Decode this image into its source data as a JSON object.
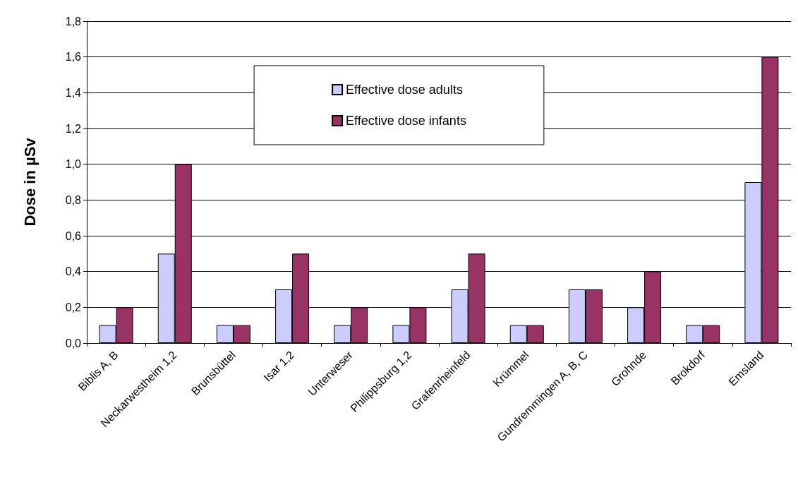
{
  "chart_data": {
    "type": "bar",
    "ylabel": "Dose in µSv",
    "categories": [
      "Biblis A, B",
      "Neckarwestheim 1,2",
      "Brunsbüttel",
      "Isar 1,2",
      "Unterweser",
      "Philippsburg 1,2",
      "Grafenrheinfeld",
      "Krümmel",
      "Gundremmingen A, B, C",
      "Grohnde",
      "Brokdorf",
      "Emsland"
    ],
    "series": [
      {
        "name": "Effective dose adults",
        "color": "#ccccff",
        "values": [
          0.1,
          0.5,
          0.1,
          0.3,
          0.1,
          0.1,
          0.3,
          0.1,
          0.3,
          0.2,
          0.1,
          0.9
        ]
      },
      {
        "name": "Effective dose infants",
        "color": "#993366",
        "values": [
          0.2,
          1.0,
          0.1,
          0.5,
          0.2,
          0.2,
          0.5,
          0.1,
          0.3,
          0.4,
          0.1,
          1.6
        ]
      }
    ],
    "ylim": [
      0,
      1.8
    ],
    "yticks": [
      {
        "value": 0,
        "label": "0,0"
      },
      {
        "value": 0.2,
        "label": "0,2"
      },
      {
        "value": 0.4,
        "label": "0,4"
      },
      {
        "value": 0.6,
        "label": "0,6"
      },
      {
        "value": 0.8,
        "label": "0,8"
      },
      {
        "value": 1.0,
        "label": "1,0"
      },
      {
        "value": 1.2,
        "label": "1,2"
      },
      {
        "value": 1.4,
        "label": "1,4"
      },
      {
        "value": 1.6,
        "label": "1,6"
      },
      {
        "value": 1.8,
        "label": "1,8"
      }
    ],
    "grid": "y",
    "legend": "top"
  }
}
